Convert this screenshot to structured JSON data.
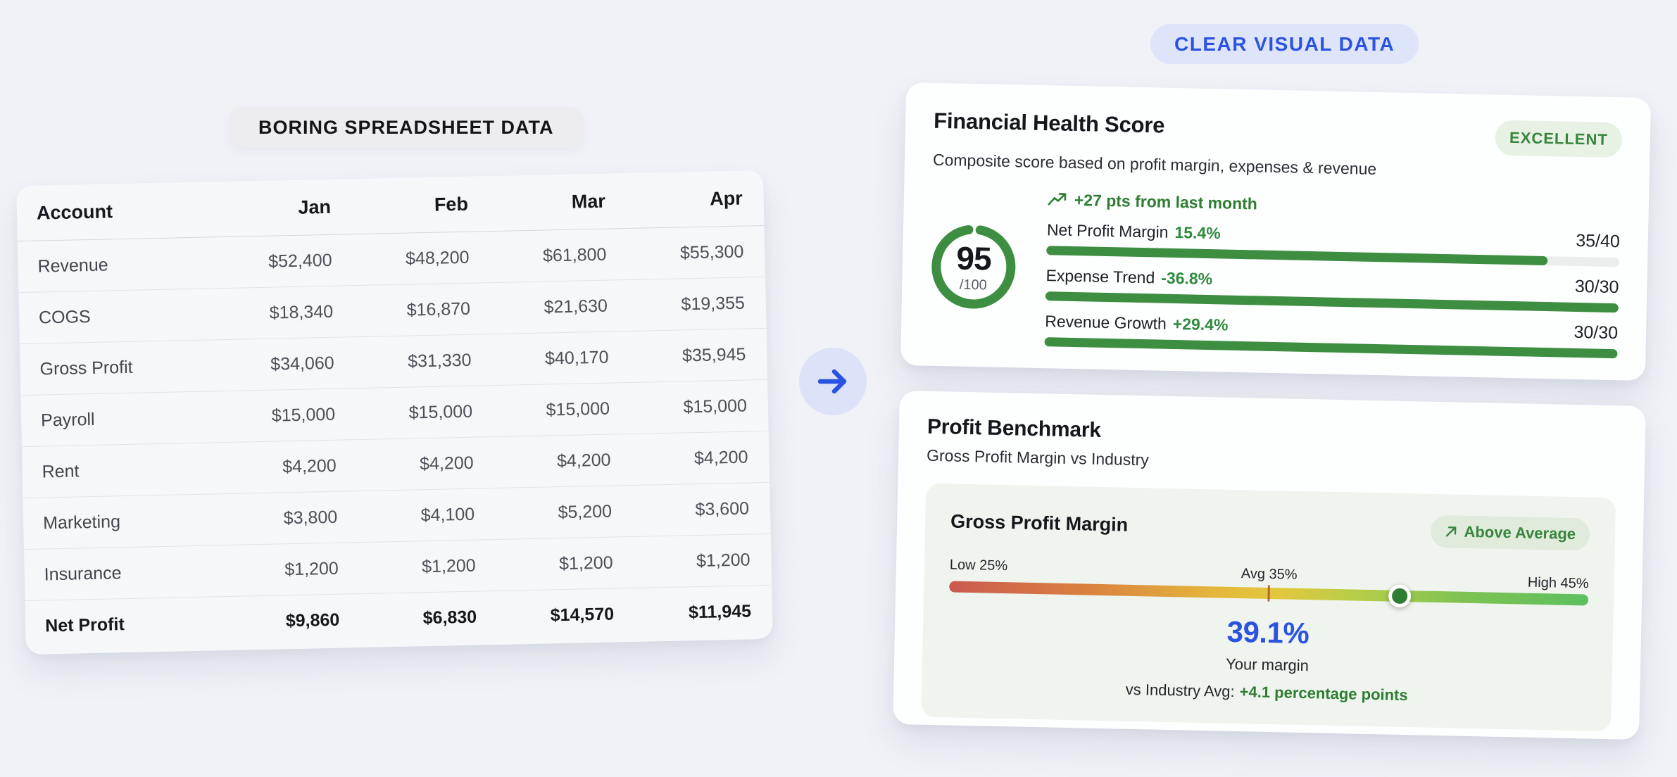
{
  "page": {
    "left_title": "BORING SPREADSHEET DATA",
    "right_title": "CLEAR VISUAL DATA"
  },
  "colors": {
    "accent_blue": "#2b53e2",
    "green_text": "#2e7d32",
    "bar_green": "#3e8e41",
    "page_bg": "#f1f2f8"
  },
  "table": {
    "columns": [
      "Account",
      "Jan",
      "Feb",
      "Mar",
      "Apr"
    ],
    "rows": [
      {
        "account": "Revenue",
        "values": [
          "$52,400",
          "$48,200",
          "$61,800",
          "$55,300"
        ],
        "bold": false
      },
      {
        "account": "COGS",
        "values": [
          "$18,340",
          "$16,870",
          "$21,630",
          "$19,355"
        ],
        "bold": false
      },
      {
        "account": "Gross Profit",
        "values": [
          "$34,060",
          "$31,330",
          "$40,170",
          "$35,945"
        ],
        "bold": false
      },
      {
        "account": "Payroll",
        "values": [
          "$15,000",
          "$15,000",
          "$15,000",
          "$15,000"
        ],
        "bold": false
      },
      {
        "account": "Rent",
        "values": [
          "$4,200",
          "$4,200",
          "$4,200",
          "$4,200"
        ],
        "bold": false
      },
      {
        "account": "Marketing",
        "values": [
          "$3,800",
          "$4,100",
          "$5,200",
          "$3,600"
        ],
        "bold": false
      },
      {
        "account": "Insurance",
        "values": [
          "$1,200",
          "$1,200",
          "$1,200",
          "$1,200"
        ],
        "bold": false
      },
      {
        "account": "Net Profit",
        "values": [
          "$9,860",
          "$6,830",
          "$14,570",
          "$11,945"
        ],
        "bold": true
      }
    ]
  },
  "health": {
    "title": "Financial Health Score",
    "subtitle": "Composite score based on profit margin, expenses & revenue",
    "badge": "EXCELLENT",
    "score": 95,
    "score_display": "95",
    "score_suffix": "/100",
    "trend": "+27 pts from last month",
    "metrics": [
      {
        "label": "Net Profit Margin",
        "value": "15.4%",
        "score": "35/40",
        "pct": 87.5
      },
      {
        "label": "Expense Trend",
        "value": "-36.8%",
        "score": "30/30",
        "pct": 100
      },
      {
        "label": "Revenue Growth",
        "value": "+29.4%",
        "score": "30/30",
        "pct": 100
      }
    ]
  },
  "benchmark": {
    "title": "Profit Benchmark",
    "subtitle": "Gross Profit Margin vs Industry",
    "metric_title": "Gross Profit Margin",
    "badge": "Above Average",
    "scale": {
      "low_label": "Low 25%",
      "avg_label": "Avg 35%",
      "high_label": "High 45%",
      "min": 25,
      "avg": 35,
      "max": 45
    },
    "value": 39.1,
    "value_display": "39.1%",
    "caption": "Your margin",
    "comparison_prefix": "vs Industry Avg:",
    "comparison_value": "+4.1 percentage points"
  }
}
